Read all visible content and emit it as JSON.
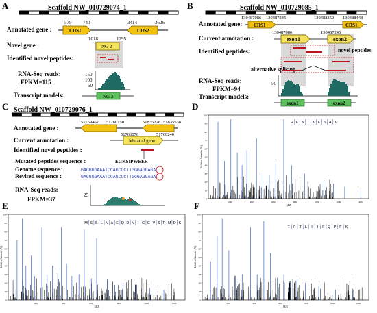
{
  "colors": {
    "gene": "#f3c210",
    "gene_stroke": "#7a6000",
    "novel": "#f3e35a",
    "green": "#5bbf5b",
    "peptide": "#c0151e",
    "teal": "#1f6a63",
    "spectrum_blue": "#3a66c8",
    "seq_blue": "#2a3fb0"
  },
  "panel_a": {
    "letter": "A",
    "scaffold": "Scaffold NW_010729074_1",
    "annotated_label": "Annotated gene :",
    "coords_top": [
      "579",
      "740",
      "3414",
      "3626"
    ],
    "cds1": "CDS1",
    "cds2": "CDS2",
    "novel_label": "Novel gene :",
    "novel_coords": [
      "1018",
      "1295"
    ],
    "ng2": "NG 2",
    "peptides_label": "Identified novel peptides:",
    "rna_label": "RNA-Seq reads:",
    "fpkm": "FPKM=115",
    "ticks": [
      "150",
      "100",
      "50"
    ],
    "transcript_label": "Transcript models:",
    "ng2_green": "NG 2"
  },
  "panel_b": {
    "letter": "B",
    "scaffold": "Scaffold NW_010729085_1",
    "annotated_label": "Annotated gene:",
    "coords_top": [
      "130487086",
      "130487245",
      "130488350",
      "130488448"
    ],
    "cds1_left": "CDS1",
    "cds1_right": "CDS1",
    "current_label": "Current annotation :",
    "current_coords": [
      "130487086",
      "130487245"
    ],
    "exon1": "exon1",
    "exon2": "exon2",
    "peptides_label": "Identified peptides:",
    "novel_peptides": "novel peptides",
    "alt_splicing": "alternative splicing",
    "rna_label": "RNA-Seq reads:",
    "fpkm": "FPKM=94",
    "tick": "50",
    "transcript_label": "Transcript models:",
    "exon1_green": "exon1",
    "exon2_green": "exon2"
  },
  "panel_c": {
    "letter": "C",
    "scaffold": "Scaffold NW_010729076_1",
    "annotated_label": "Annotated  gene :",
    "coords_top": [
      "51759467",
      "51760150",
      "51835278",
      "51835538"
    ],
    "current_label": "Current annotation :",
    "current_coords": [
      "51760076",
      "51760240"
    ],
    "mutated_gene": "Mutated gene",
    "peptides_label": "Identified novel peptides :",
    "mutated_label": "Mutated peptides sequence :",
    "mutated_seq": "EGKSIPWEER",
    "genome_label": "Genome sequence :",
    "genome_seq": "GAGGGGAAATCCAGCCCTTGGGAGGAGA",
    "revised_label": "Revised  sequence :",
    "revised_seq": "GAGGGGAAATCCAGCCCTTGGGAGGAGA",
    "rna_label": "RNA-Seq reads:",
    "fpkm": "FPKM=37",
    "tick": "25"
  },
  "panel_d": {
    "letter": "D",
    "sequence": [
      "H",
      "K",
      "N",
      "T",
      "K",
      "K",
      "S",
      "A",
      "K"
    ],
    "ylabel": "Relative Intensity (%)",
    "xlabel": "M/Z",
    "xticks": [
      "200",
      "400",
      "600",
      "800",
      "1000",
      "1200",
      "1400"
    ],
    "yticks": [
      "100",
      "90",
      "80",
      "70",
      "60",
      "50",
      "40",
      "30",
      "20",
      "10",
      "0"
    ]
  },
  "panel_e": {
    "letter": "E",
    "sequence": [
      "M",
      "S",
      "S",
      "L",
      "N",
      "A",
      "E",
      "Q",
      "D",
      "N",
      "I",
      "C",
      "C",
      "V",
      "S",
      "P",
      "M",
      "D",
      "K"
    ],
    "ylabel": "Relative Intensity (%)",
    "xlabel": "M/Z",
    "xticks": [
      "200",
      "400",
      "600",
      "800",
      "1000",
      "1200"
    ],
    "yticks": [
      "100",
      "90",
      "80",
      "70",
      "60",
      "50",
      "40",
      "30",
      "20",
      "10",
      "0"
    ]
  },
  "panel_f": {
    "letter": "F",
    "sequence": [
      "T",
      "F",
      "T",
      "L",
      "I",
      "I",
      "F",
      "Q",
      "P",
      "F",
      "K"
    ],
    "ylabel": "Relative Intensity (%)",
    "xlabel": "M/Z",
    "xticks": [
      "200",
      "400",
      "600",
      "800",
      "1000",
      "1200"
    ],
    "yticks": [
      "100",
      "90",
      "80",
      "70",
      "60",
      "50",
      "40",
      "30",
      "20",
      "10",
      "0"
    ]
  }
}
